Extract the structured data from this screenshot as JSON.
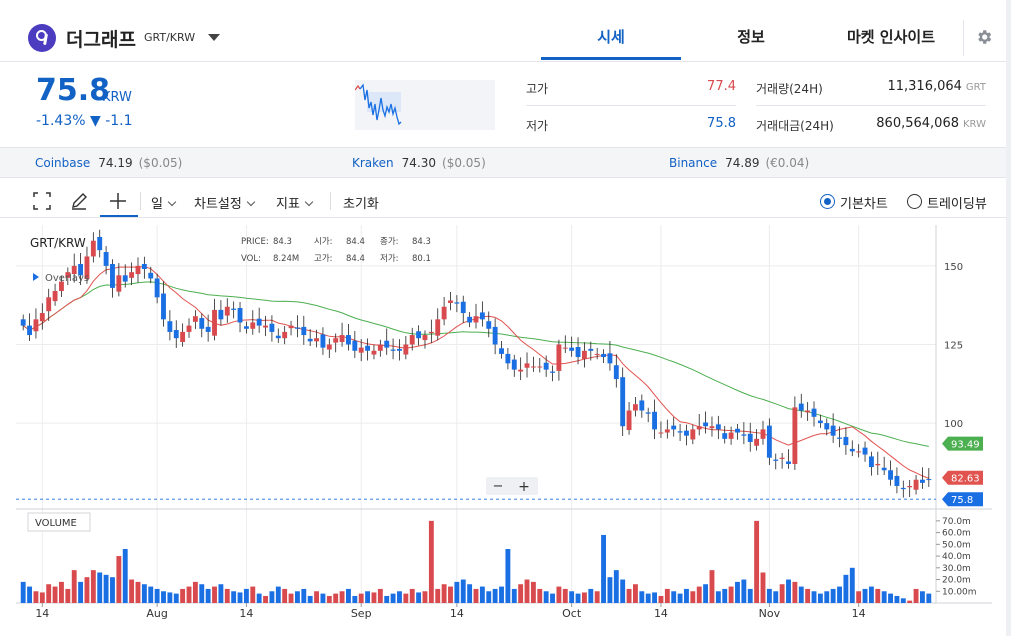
{
  "coin": {
    "name": "더그래프",
    "pair": "GRT/KRW"
  },
  "tabs": [
    {
      "label": "시세"
    },
    {
      "label": "정보"
    },
    {
      "label": "마켓 인사이트"
    }
  ],
  "price": {
    "value": "75.8",
    "unit": "KRW",
    "change_pct": "-1.43%",
    "change_arrow": "▼",
    "change_abs": "-1.1"
  },
  "stats": {
    "high_label": "고가",
    "high_value": "77.4",
    "low_label": "저가",
    "low_value": "75.8",
    "volume_label": "거래량(24H)",
    "volume_value": "11,316,064",
    "volume_unit": "GRT",
    "turnover_label": "거래대금(24H)",
    "turnover_value": "860,564,068",
    "turnover_unit": "KRW"
  },
  "exchanges": [
    {
      "name": "Coinbase",
      "price": "74.19",
      "diff": "($0.05)"
    },
    {
      "name": "Kraken",
      "price": "74.30",
      "diff": "($0.05)"
    },
    {
      "name": "Binance",
      "price": "74.89",
      "diff": "(€0.04)"
    }
  ],
  "toolbar": {
    "period": "일",
    "chart_settings": "차트설정",
    "indicators": "지표",
    "reset": "초기화",
    "basic_chart": "기본차트",
    "tradingview": "트레이딩뷰"
  },
  "colors": {
    "accent": "#1261c4",
    "up": "#d84a4e",
    "down": "#1a6fe3",
    "ma_short": "#e0534e",
    "ma_long": "#4caf50"
  },
  "chart_data": {
    "type": "candlestick",
    "symbol_label": "GRT/KRW",
    "overlays_label": "Overlays",
    "volume_label": "VOLUME",
    "ohlc_info": {
      "price_label": "PRICE:",
      "price": "84.3",
      "open_label": "시가:",
      "open": "84.4",
      "close_label": "종가:",
      "close": "84.3",
      "vol_label": "VOL:",
      "vol": "8.24M",
      "high_label": "고가:",
      "high": "84.4",
      "low_label": "저가:",
      "low": "80.1"
    },
    "y_ticks": [
      "150",
      "125",
      "100"
    ],
    "y_range": [
      73,
      163
    ],
    "vol_ticks": [
      "70.0m",
      "60.0m",
      "50.0m",
      "40.0m",
      "30.0m",
      "20.0m",
      "10.00m"
    ],
    "vol_range": [
      0,
      75
    ],
    "x_ticks": [
      "14",
      "Aug",
      "14",
      "Sep",
      "14",
      "Oct",
      "14",
      "Nov",
      "14"
    ],
    "badges": {
      "ma_long": "93.49",
      "ma_short": "82.63",
      "current": "75.8"
    },
    "current_price": 75.8,
    "closes": [
      131,
      128,
      133,
      135,
      140,
      142,
      145,
      148,
      150,
      147,
      153,
      158,
      155,
      150,
      143,
      147,
      145,
      148,
      150,
      149,
      146,
      140,
      133,
      129,
      127,
      129,
      131,
      134,
      130,
      129,
      136,
      133,
      137,
      136,
      132,
      130,
      132,
      131,
      131,
      129,
      127,
      129,
      131,
      130,
      128,
      126,
      127,
      124,
      125,
      127,
      128,
      125,
      123,
      124,
      123,
      123,
      125,
      124,
      123,
      123,
      125,
      128,
      127,
      128,
      129,
      133,
      137,
      139,
      138,
      135,
      132,
      134,
      133,
      130,
      125,
      122,
      119,
      117,
      117,
      119,
      118,
      118,
      117,
      116,
      125,
      124,
      123,
      121,
      123,
      123,
      122,
      121,
      119,
      114,
      99,
      104,
      106,
      104,
      103,
      98,
      97,
      98,
      98,
      97,
      96,
      98,
      99,
      99,
      99,
      98,
      95,
      97,
      97,
      96,
      94,
      95,
      98,
      89,
      88,
      89,
      87,
      105,
      104,
      104,
      102,
      100,
      98,
      96,
      95,
      93,
      91,
      91,
      90,
      86,
      87,
      85,
      82,
      80,
      79,
      80,
      82,
      81,
      82
    ],
    "volumes": [
      18,
      14,
      10,
      9,
      16,
      14,
      18,
      12,
      28,
      18,
      22,
      28,
      26,
      24,
      22,
      40,
      46,
      20,
      18,
      16,
      14,
      12,
      10,
      9,
      8,
      12,
      14,
      18,
      16,
      12,
      14,
      16,
      12,
      10,
      9,
      12,
      14,
      8,
      6,
      10,
      14,
      12,
      8,
      10,
      12,
      6,
      10,
      8,
      6,
      8,
      10,
      12,
      6,
      8,
      10,
      9,
      12,
      6,
      8,
      10,
      8,
      12,
      9,
      10,
      70,
      12,
      16,
      14,
      18,
      20,
      16,
      12,
      14,
      10,
      12,
      14,
      46,
      12,
      16,
      20,
      18,
      12,
      10,
      8,
      14,
      12,
      10,
      8,
      9,
      12,
      10,
      58,
      22,
      28,
      20,
      12,
      16,
      10,
      8,
      9,
      6,
      12,
      10,
      8,
      12,
      10,
      14,
      16,
      28,
      10,
      12,
      14,
      18,
      20,
      12,
      70,
      26,
      12,
      10,
      16,
      20,
      18,
      14,
      12,
      10,
      8,
      10,
      12,
      14,
      24,
      30,
      10,
      12,
      14,
      12,
      10,
      8,
      6,
      4,
      2,
      12,
      10,
      8
    ]
  }
}
